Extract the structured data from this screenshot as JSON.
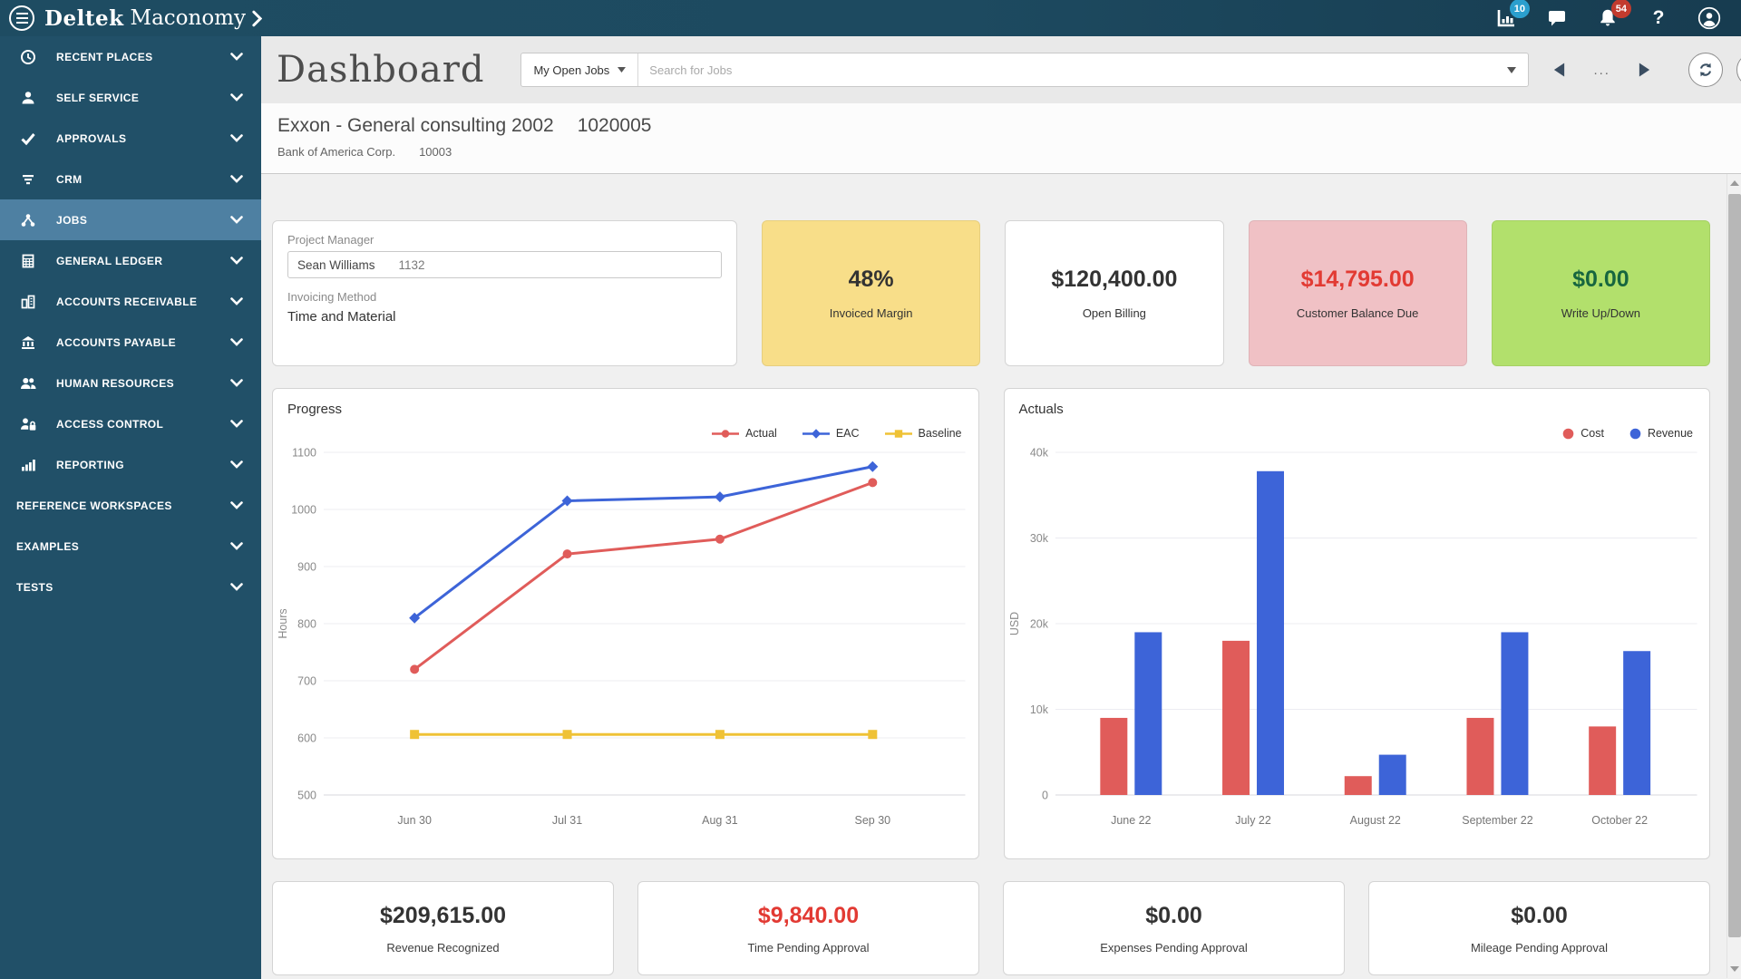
{
  "topbar": {
    "brand_deltek": "Deltek",
    "brand_product": "Maconomy",
    "icons": [
      {
        "icon": "stats",
        "name": "stats-icon",
        "badge": "10",
        "badge_color": "#2b9fce"
      },
      {
        "icon": "chat",
        "name": "chat-icon"
      },
      {
        "icon": "bell",
        "name": "notifications-icon",
        "badge": "54",
        "badge_color": "#c23b2e"
      },
      {
        "icon": "help",
        "name": "help-icon"
      },
      {
        "icon": "user",
        "name": "user-avatar-icon"
      }
    ]
  },
  "sidebar": {
    "items": [
      {
        "label": "RECENT PLACES",
        "icon": "clock"
      },
      {
        "label": "SELF SERVICE",
        "icon": "person"
      },
      {
        "label": "APPROVALS",
        "icon": "check"
      },
      {
        "label": "CRM",
        "icon": "funnel"
      },
      {
        "label": "JOBS",
        "icon": "hierarchy",
        "selected": true
      },
      {
        "label": "GENERAL LEDGER",
        "icon": "ledger"
      },
      {
        "label": "ACCOUNTS RECEIVABLE",
        "icon": "buildings"
      },
      {
        "label": "ACCOUNTS PAYABLE",
        "icon": "bank"
      },
      {
        "label": "HUMAN RESOURCES",
        "icon": "people"
      },
      {
        "label": "ACCESS CONTROL",
        "icon": "lockuser"
      },
      {
        "label": "REPORTING",
        "icon": "bars"
      },
      {
        "label": "REFERENCE WORKSPACES"
      },
      {
        "label": "EXAMPLES"
      },
      {
        "label": "TESTS"
      }
    ]
  },
  "toolbar": {
    "title": "Dashboard",
    "filter_value": "My Open Jobs",
    "search_placeholder": "Search for Jobs",
    "pager_ellipsis": "..."
  },
  "job_header": {
    "title": "Exxon - General consulting 2002",
    "job_number": "1020005",
    "customer": "Bank of America Corp.",
    "customer_number": "10003"
  },
  "info_card": {
    "pm_label": "Project Manager",
    "pm_name": "Sean Williams",
    "pm_number": "1132",
    "invoicing_label": "Invoicing Method",
    "invoicing_value": "Time and Material"
  },
  "kpis": [
    {
      "value": "48%",
      "label": "Invoiced Margin",
      "bg": "#f8de89",
      "value_color": "#333333"
    },
    {
      "value": "$120,400.00",
      "label": "Open Billing",
      "bg": "#ffffff",
      "value_color": "#333333"
    },
    {
      "value": "$14,795.00",
      "label": "Customer Balance Due",
      "bg": "#f0c1c5",
      "value_color": "#e23a33"
    },
    {
      "value": "$0.00",
      "label": "Write Up/Down",
      "bg": "#b2e06c",
      "value_color": "#17663f"
    }
  ],
  "chart_data": [
    {
      "type": "line",
      "title": "Progress",
      "ylabel": "Hours",
      "ylim": [
        500,
        1100
      ],
      "ytick_step": 100,
      "grid": true,
      "legend_position": "top-right",
      "categories": [
        "Jun 30",
        "Jul 31",
        "Aug 31",
        "Sep 30"
      ],
      "series": [
        {
          "name": "Actual",
          "color": "#e05c5a",
          "marker": "circle",
          "values": [
            720,
            922,
            948,
            1047
          ]
        },
        {
          "name": "EAC",
          "color": "#3d64d8",
          "marker": "diamond",
          "values": [
            810,
            1015,
            1022,
            1075
          ]
        },
        {
          "name": "Baseline",
          "color": "#efc236",
          "marker": "square",
          "values": [
            606,
            606,
            606,
            606
          ]
        }
      ]
    },
    {
      "type": "bar",
      "title": "Actuals",
      "ylabel": "USD",
      "ylim": [
        0,
        40000
      ],
      "yticks": [
        "0",
        "10k",
        "20k",
        "30k",
        "40k"
      ],
      "grid": true,
      "legend_position": "top-right",
      "categories": [
        "June 22",
        "July 22",
        "August 22",
        "September 22",
        "October 22"
      ],
      "series": [
        {
          "name": "Cost",
          "color": "#e05c5a",
          "values": [
            9000,
            18000,
            2200,
            9000,
            8000
          ]
        },
        {
          "name": "Revenue",
          "color": "#3d64d8",
          "values": [
            19000,
            37800,
            4700,
            19000,
            16800
          ]
        }
      ]
    }
  ],
  "summary_cards": [
    {
      "value": "$209,615.00",
      "label": "Revenue Recognized",
      "value_color": "#333333"
    },
    {
      "value": "$9,840.00",
      "label": "Time Pending Approval",
      "value_color": "#e23a33"
    },
    {
      "value": "$0.00",
      "label": "Expenses Pending Approval",
      "value_color": "#333333"
    },
    {
      "value": "$0.00",
      "label": "Mileage Pending Approval",
      "value_color": "#333333"
    }
  ]
}
